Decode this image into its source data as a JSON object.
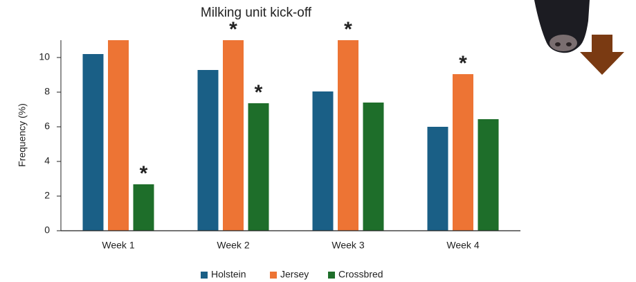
{
  "chart_data": {
    "type": "bar",
    "title": "Milking unit kick-off",
    "y_label": "Frequency (%)",
    "categories": [
      "Week 1",
      "Week 2",
      "Week 3",
      "Week 4"
    ],
    "series": [
      {
        "name": "Holstein",
        "color": "#1a5f86",
        "values": [
          10.2,
          9.28,
          8.04,
          6.0
        ],
        "annotations": [
          null,
          null,
          null,
          null
        ]
      },
      {
        "name": "Jersey",
        "color": "#ed7434",
        "values": [
          11,
          11,
          11,
          9.04
        ],
        "annotations": [
          null,
          "*",
          "*",
          "*"
        ]
      },
      {
        "name": "Crossbred",
        "color": "#1e6e2a",
        "values": [
          2.68,
          7.36,
          7.4,
          6.44
        ],
        "annotations": [
          "*",
          "*",
          null,
          null
        ]
      }
    ],
    "ylim": [
      0,
      11
    ],
    "yticks": [
      0,
      2,
      4,
      6,
      8,
      10
    ],
    "grid": false,
    "legend": "bottom"
  }
}
